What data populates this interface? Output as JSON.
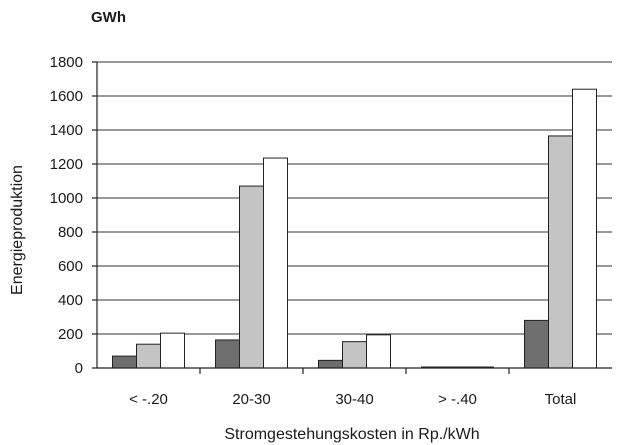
{
  "chart_data": {
    "type": "bar",
    "unit_label": "GWh",
    "xlabel": "Stromgestehungskosten in Rp./kWh",
    "ylabel": "Energieproduktion",
    "categories": [
      "< -.20",
      "20-30",
      "30-40",
      "> -.40",
      "Total"
    ],
    "ylim": [
      0,
      1800
    ],
    "yticks": [
      0,
      200,
      400,
      600,
      800,
      1000,
      1200,
      1400,
      1600,
      1800
    ],
    "grid": true,
    "series": [
      {
        "color": "#6e6e6e",
        "values": [
          70,
          165,
          45,
          5,
          280
        ]
      },
      {
        "color": "#c4c4c4",
        "values": [
          140,
          1070,
          155,
          5,
          1365
        ]
      },
      {
        "color": "#ffffff",
        "values": [
          205,
          1235,
          195,
          5,
          1640
        ]
      }
    ]
  }
}
